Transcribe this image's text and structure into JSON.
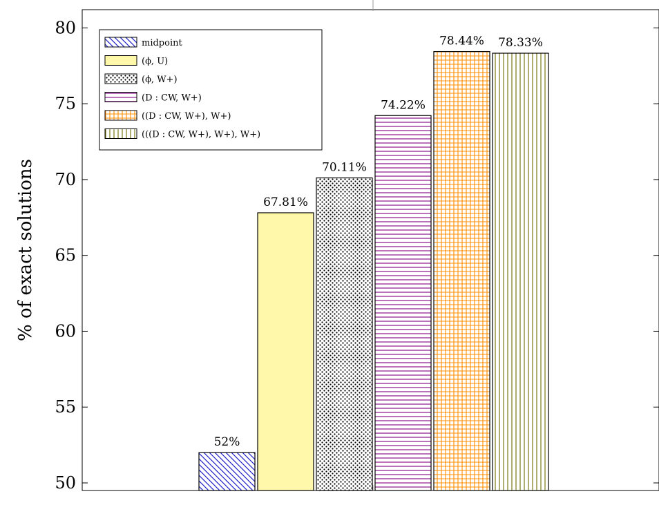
{
  "chart_data": {
    "type": "bar",
    "title": "",
    "xlabel": "",
    "ylabel": "% of exact solutions",
    "ylim": [
      49.5,
      81.2
    ],
    "yticks": [
      50,
      55,
      60,
      65,
      70,
      75,
      80
    ],
    "grid": false,
    "legend_position": "top-left",
    "series": [
      {
        "name": "midpoint",
        "value": 52,
        "label": "52%",
        "fill": "#ffffff",
        "pattern_color": "#1f1fcc",
        "pattern": "diagonal-hatch"
      },
      {
        "name": "(ϕ, U)",
        "value": 67.81,
        "label": "67.81%",
        "fill": "#fff7aa",
        "pattern_color": "",
        "pattern": "solid"
      },
      {
        "name": "(ϕ, W+)",
        "value": 70.11,
        "label": "70.11%",
        "fill": "#ffffff",
        "pattern_color": "#000000",
        "pattern": "dots"
      },
      {
        "name": "(D : CW, W+)",
        "value": 74.22,
        "label": "74.22%",
        "fill": "#ffffff",
        "pattern_color": "#800080",
        "pattern": "horizontal-lines"
      },
      {
        "name": "((D : CW, W+), W+)",
        "value": 78.44,
        "label": "78.44%",
        "fill": "#ffffff",
        "pattern_color": "#ff8c00",
        "pattern": "grid"
      },
      {
        "name": "(((D : CW, W+), W+), W+)",
        "value": 78.33,
        "label": "78.33%",
        "fill": "#ffffff",
        "pattern_color": "#6b6b00",
        "pattern": "vertical-lines"
      }
    ]
  }
}
